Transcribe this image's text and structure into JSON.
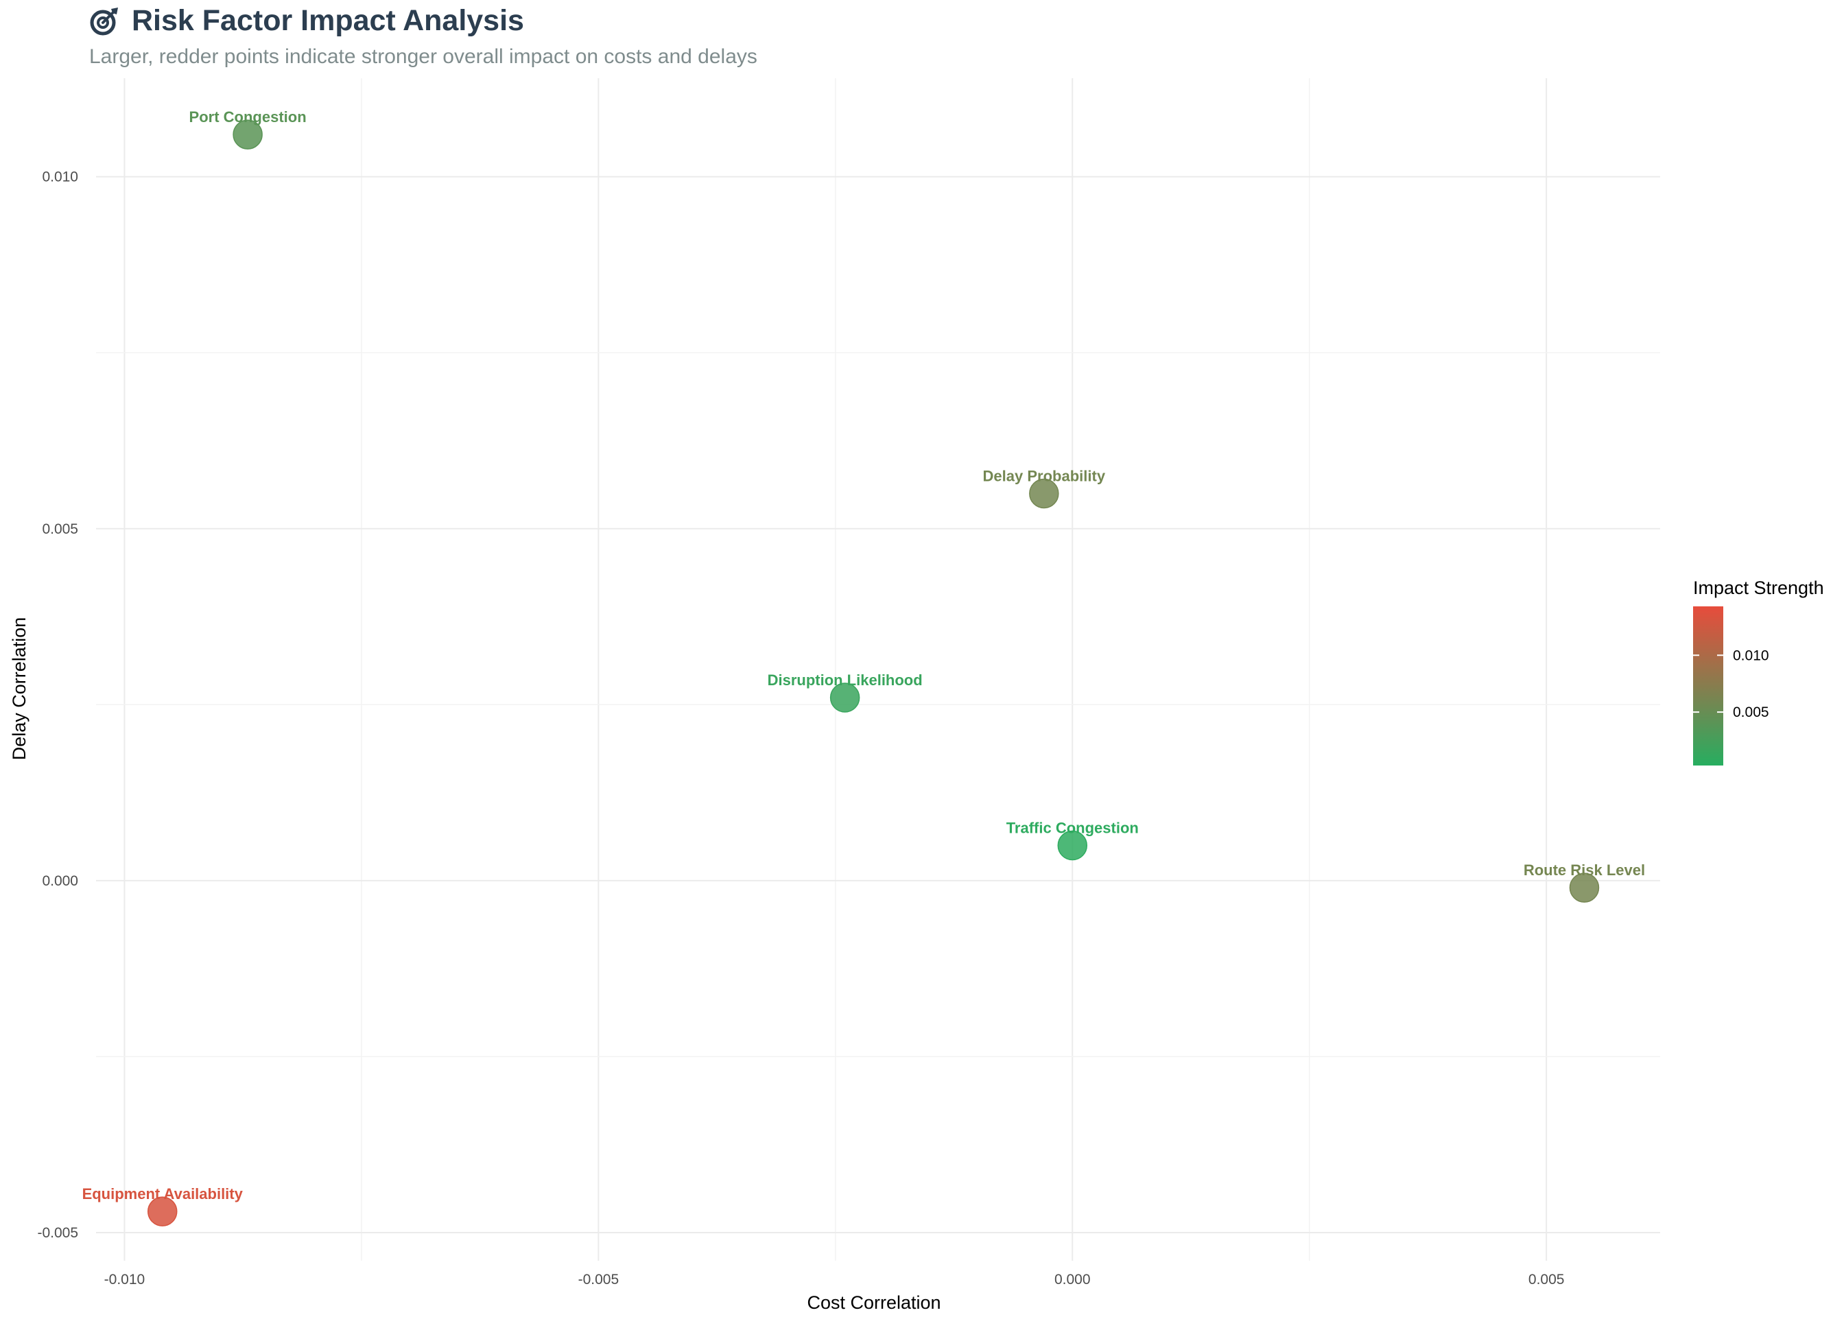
{
  "header": {
    "title": "Risk Factor Impact Analysis",
    "title_icon": "target-icon",
    "subtitle": "Larger, redder points indicate stronger overall impact on costs and delays"
  },
  "chart_data": {
    "type": "scatter",
    "title": "Risk Factor Impact Analysis",
    "subtitle": "Larger, redder points indicate stronger overall impact on costs and delays",
    "xlabel": "Cost Correlation",
    "ylabel": "Delay Correlation",
    "xlim": [
      -0.0103,
      0.0062
    ],
    "ylim": [
      -0.0054,
      0.0114
    ],
    "x_ticks": [
      -0.01,
      -0.005,
      0.0,
      0.005
    ],
    "x_tick_labels": [
      "-0.010",
      "-0.005",
      "0.000",
      "0.005"
    ],
    "y_ticks": [
      -0.005,
      0.0,
      0.005,
      0.01
    ],
    "y_tick_labels": [
      "-0.005",
      "0.000",
      "0.005",
      "0.010"
    ],
    "grid": true,
    "points": [
      {
        "label": "Port Congestion",
        "x": -0.0087,
        "y": 0.0106,
        "impact": 0.004
      },
      {
        "label": "Delay Probability",
        "x": -0.0003,
        "y": 0.0055,
        "impact": 0.0059
      },
      {
        "label": "Disruption Likelihood",
        "x": -0.0024,
        "y": 0.0026,
        "impact": 0.0016
      },
      {
        "label": "Traffic Congestion",
        "x": -0.0,
        "y": 0.0005,
        "impact": 0.0008
      },
      {
        "label": "Route Risk Level",
        "x": 0.0054,
        "y": -0.0001,
        "impact": 0.006
      },
      {
        "label": "Equipment Availability",
        "x": -0.0096,
        "y": -0.0047,
        "impact": 0.0131
      }
    ],
    "legend": {
      "title": "Impact Strength",
      "placement": "right",
      "ticks": [
        0.005,
        0.01
      ],
      "tick_labels": [
        "0.005",
        "0.010"
      ],
      "range": [
        0.0003,
        0.0143
      ],
      "low_color": "#27ae60",
      "high_color": "#e74c3c"
    }
  }
}
